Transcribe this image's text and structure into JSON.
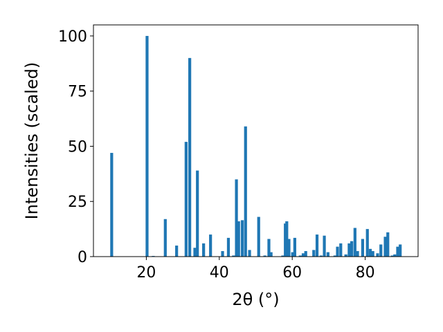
{
  "chart_data": {
    "type": "bar",
    "title": "",
    "xlabel": "2θ (°)",
    "ylabel": "Intensities (scaled)",
    "xlim": [
      5.5,
      94.5
    ],
    "ylim": [
      0,
      105
    ],
    "xticks": [
      20,
      40,
      60,
      80
    ],
    "yticks": [
      0,
      25,
      50,
      75,
      100
    ],
    "grid": false,
    "bar_color": "#1f77b4",
    "bar_width": 0.8,
    "x": [
      10.5,
      20.2,
      21.9,
      25.2,
      28.3,
      30.9,
      31.9,
      33.3,
      34.0,
      35.7,
      37.6,
      40.9,
      42.5,
      43.9,
      44.7,
      45.3,
      46.3,
      47.2,
      48.3,
      50.8,
      52.5,
      53.6,
      54.2,
      57.4,
      58.1,
      58.5,
      59.1,
      60.1,
      60.7,
      62.2,
      63.0,
      63.7,
      65.9,
      66.8,
      67.9,
      68.8,
      69.8,
      71.7,
      72.4,
      73.3,
      74.7,
      75.6,
      76.3,
      77.2,
      77.9,
      79.3,
      80.6,
      81.4,
      82.1,
      83.4,
      84.3,
      85.5,
      86.2,
      87.4,
      88.1,
      88.9,
      89.6
    ],
    "values": [
      47,
      100,
      0.3,
      17,
      5,
      52,
      90,
      4,
      39,
      6,
      10,
      2.5,
      8.5,
      0.5,
      35,
      16,
      16.5,
      59,
      3,
      18,
      0.5,
      8,
      2,
      0.5,
      15,
      16,
      8,
      2,
      8.5,
      0.5,
      1.5,
      2.5,
      3,
      10,
      0.5,
      9.5,
      2,
      0.5,
      4.5,
      6,
      1,
      6,
      7,
      13,
      2.5,
      8,
      12.5,
      3.5,
      2.5,
      1.5,
      5.5,
      9,
      11,
      0.5,
      1,
      4.5,
      5.5
    ]
  }
}
